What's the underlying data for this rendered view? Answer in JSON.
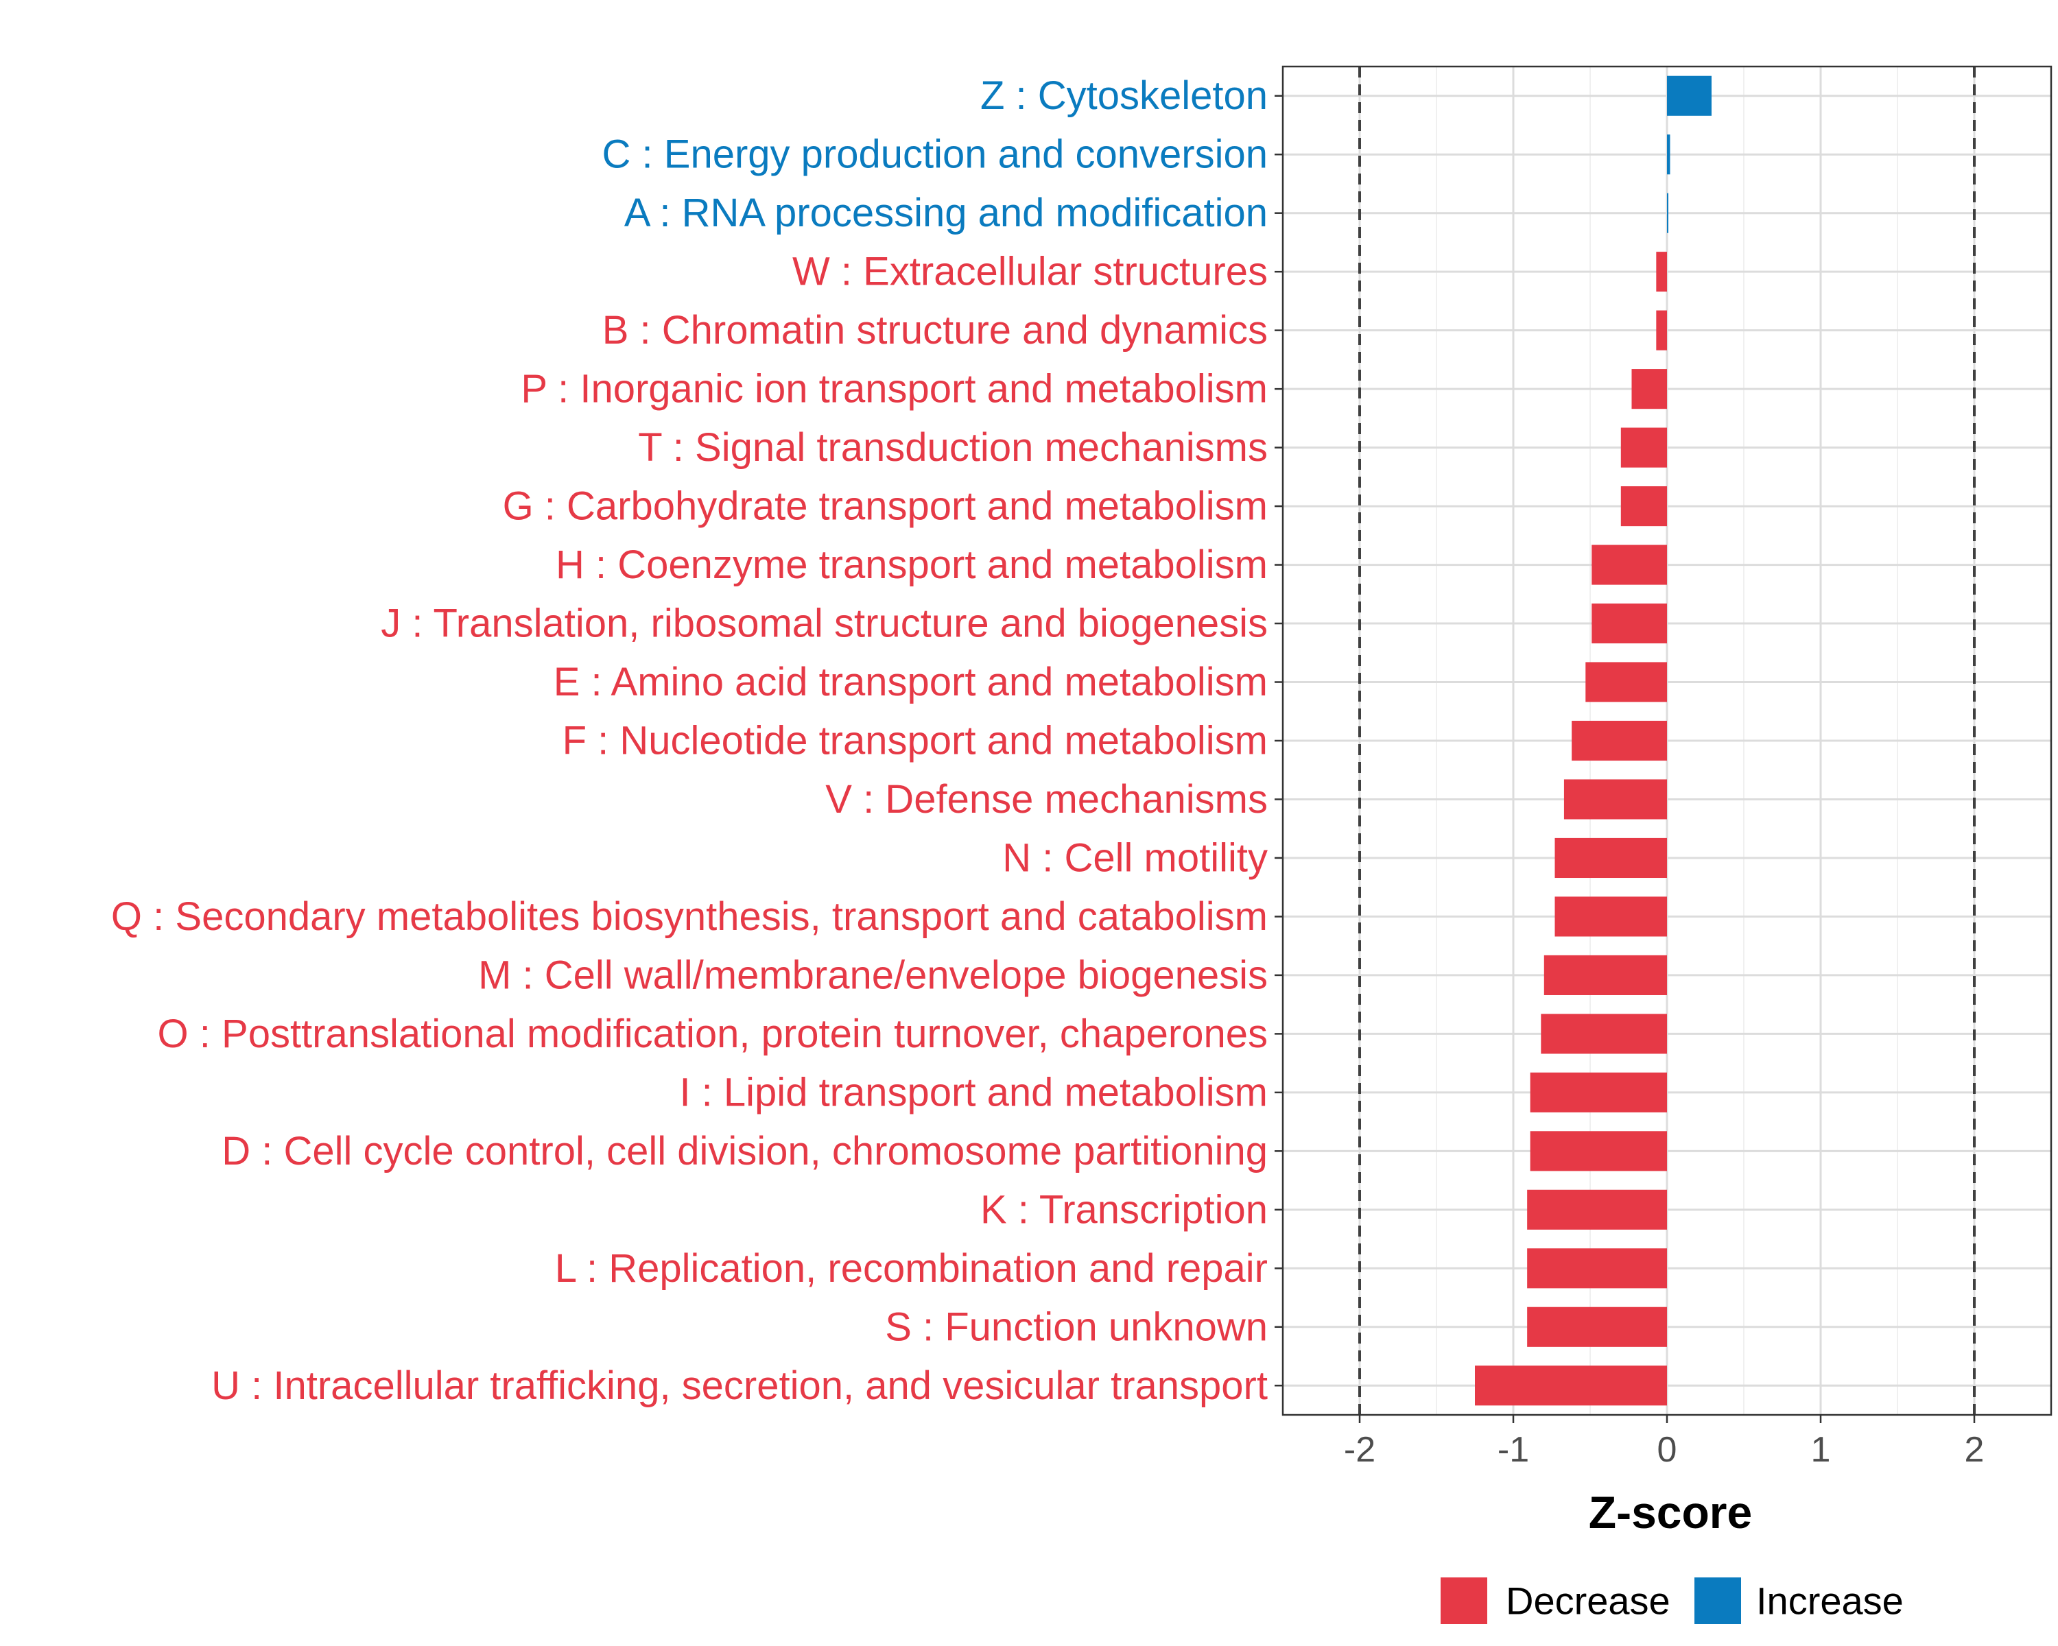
{
  "chart_data": {
    "type": "bar",
    "orientation": "horizontal",
    "xlabel": "Z-score",
    "ylabel": "",
    "xlim": [
      -2.5,
      2.5
    ],
    "xticks": [
      -2,
      -1,
      0,
      1,
      2
    ],
    "xtick_labels": [
      "-2",
      "-1",
      "0",
      "1",
      "2"
    ],
    "reference_lines": [
      -2,
      2
    ],
    "grid": true,
    "colors": {
      "Decrease": "#e63946",
      "Increase": "#0a7bbf"
    },
    "legend": {
      "position": "bottom-right",
      "entries": [
        "Decrease",
        "Increase"
      ]
    },
    "categories": [
      "Z : Cytoskeleton",
      "C : Energy production and conversion",
      "A : RNA processing and modification",
      "W : Extracellular structures",
      "B : Chromatin structure and dynamics",
      "P : Inorganic ion transport and metabolism",
      "T : Signal transduction mechanisms",
      "G : Carbohydrate transport and metabolism",
      "H : Coenzyme transport and metabolism",
      "J : Translation, ribosomal structure and biogenesis",
      "E : Amino acid transport and metabolism",
      "F : Nucleotide transport and metabolism",
      "V : Defense mechanisms",
      "N : Cell motility",
      "Q : Secondary metabolites biosynthesis, transport and catabolism",
      "M : Cell wall/membrane/envelope biogenesis",
      "O : Posttranslational modification, protein turnover, chaperones",
      "I : Lipid transport and metabolism",
      "D : Cell cycle control, cell division, chromosome partitioning",
      "K : Transcription",
      "L : Replication, recombination and repair",
      "S : Function unknown",
      "U : Intracellular trafficking, secretion, and vesicular transport"
    ],
    "values": [
      0.29,
      0.02,
      0.005,
      -0.07,
      -0.07,
      -0.23,
      -0.3,
      -0.3,
      -0.49,
      -0.49,
      -0.53,
      -0.62,
      -0.67,
      -0.73,
      -0.73,
      -0.8,
      -0.82,
      -0.89,
      -0.89,
      -0.91,
      -0.91,
      -0.91,
      -1.25
    ],
    "groups": [
      "Increase",
      "Increase",
      "Increase",
      "Decrease",
      "Decrease",
      "Decrease",
      "Decrease",
      "Decrease",
      "Decrease",
      "Decrease",
      "Decrease",
      "Decrease",
      "Decrease",
      "Decrease",
      "Decrease",
      "Decrease",
      "Decrease",
      "Decrease",
      "Decrease",
      "Decrease",
      "Decrease",
      "Decrease",
      "Decrease"
    ]
  }
}
